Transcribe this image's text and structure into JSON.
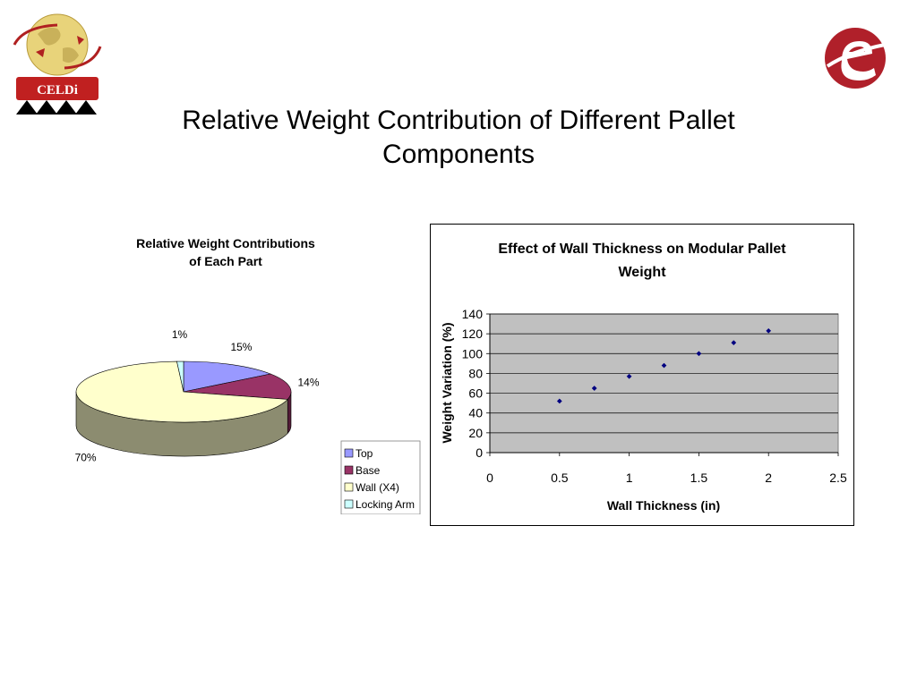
{
  "slide": {
    "title_line1": "Relative Weight Contribution of Different Pallet",
    "title_line2": "Components"
  },
  "logos": {
    "left_text": "CELDi",
    "left_icon": "globe-icon",
    "right_icon": "e-logo-icon"
  },
  "chart_data": [
    {
      "type": "pie",
      "title_line1": "Relative Weight Contributions",
      "title_line2": "of Each Part",
      "categories": [
        "Top",
        "Base",
        "Wall (X4)",
        "Locking Arm"
      ],
      "values": [
        15,
        14,
        70,
        1
      ],
      "labels": [
        "15%",
        "14%",
        "70%",
        "1%"
      ],
      "colors": [
        "#9999ff",
        "#993366",
        "#ffffcc",
        "#ccffff"
      ],
      "three_d": true,
      "legend_position": "bottom-right"
    },
    {
      "type": "scatter",
      "title_line1": "Effect of Wall Thickness on Modular Pallet",
      "title_line2": "Weight",
      "xlabel": "Wall Thickness (in)",
      "ylabel": "Weight Variation (%)",
      "x": [
        0.5,
        0.75,
        1.0,
        1.25,
        1.5,
        1.75,
        2.0
      ],
      "y": [
        52,
        65,
        77,
        88,
        100,
        111,
        123
      ],
      "xlim": [
        0,
        2.5
      ],
      "ylim": [
        0,
        140
      ],
      "xticks": [
        "0",
        "0.5",
        "1",
        "1.5",
        "2",
        "2.5"
      ],
      "yticks": [
        "0",
        "20",
        "40",
        "60",
        "80",
        "100",
        "120",
        "140"
      ],
      "grid": true,
      "plot_background": "#c0c0c0",
      "marker_color": "#000080"
    }
  ]
}
